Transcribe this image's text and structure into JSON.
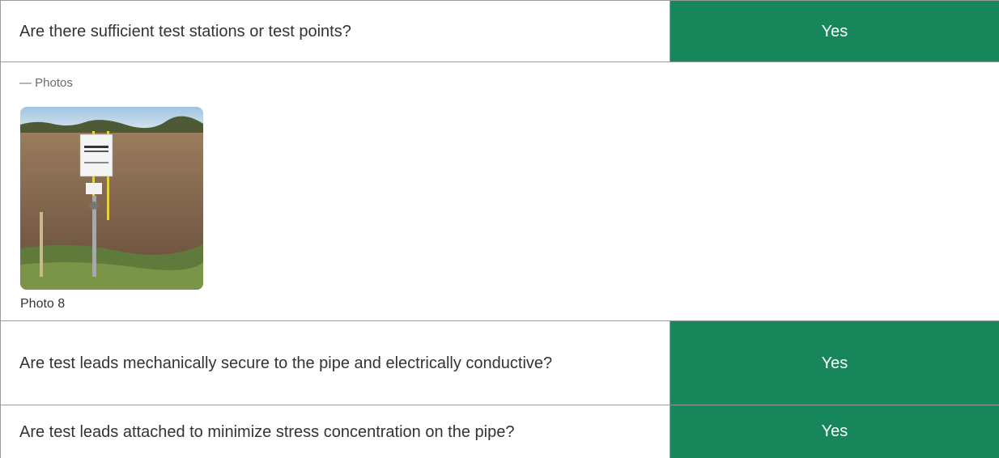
{
  "questions": [
    {
      "text": "Are there sufficient test stations or test points?",
      "answer": "Yes"
    },
    {
      "text": "Are test leads mechanically secure to the pipe and electrically conductive?",
      "answer": "Yes"
    },
    {
      "text": "Are test leads attached to minimize stress concentration on the pipe?",
      "answer": "Yes"
    }
  ],
  "photos": {
    "label": "— Photos",
    "items": [
      {
        "caption": "Photo 8"
      }
    ]
  }
}
